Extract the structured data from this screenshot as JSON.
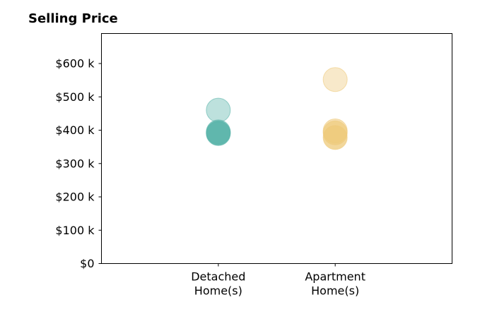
{
  "chart_data": {
    "type": "scatter",
    "title": "Selling Price",
    "xlabel": "",
    "ylabel": "",
    "categories": [
      [
        "Detached",
        "Home(s)"
      ],
      [
        "Apartment",
        "Home(s)"
      ]
    ],
    "xlim": [
      -1,
      2
    ],
    "ylim": [
      0,
      690
    ],
    "y_ticks": [
      {
        "value": 0,
        "label": "$0"
      },
      {
        "value": 100,
        "label": "$100 k"
      },
      {
        "value": 200,
        "label": "$200 k"
      },
      {
        "value": 300,
        "label": "$300 k"
      },
      {
        "value": 400,
        "label": "$400 k"
      },
      {
        "value": 500,
        "label": "$500 k"
      },
      {
        "value": 600,
        "label": "$600 k"
      }
    ],
    "grid": false,
    "legend": "none",
    "series": [
      {
        "category_index": 0,
        "color": "#5ab4aa",
        "values": [
          460,
          395,
          392,
          390
        ]
      },
      {
        "category_index": 1,
        "color": "#eec97a",
        "values": [
          552,
          398,
          392,
          378
        ]
      }
    ],
    "point_alpha": [
      0.4,
      0.55,
      0.65,
      0.75
    ]
  }
}
